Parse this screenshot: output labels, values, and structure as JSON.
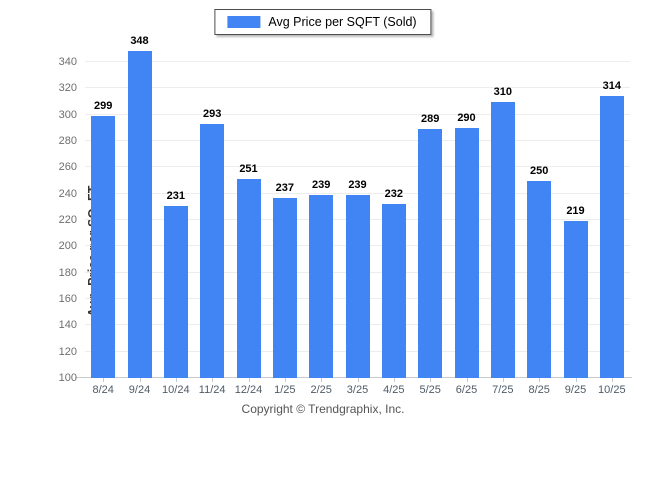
{
  "legend": {
    "label": "Avg Price per SQFT (Sold)",
    "swatch_color": "#4184F3"
  },
  "footer": {
    "copyright": "Copyright © Trendgraphix, Inc."
  },
  "colors": {
    "bar": "#4184F3",
    "gridline": "#ededed",
    "axis_line": "#cccccc",
    "y_tick_label": "#6e6e6e",
    "x_tick_label": "#4e5b66",
    "value_label": "#000000"
  },
  "chart_data": {
    "type": "bar",
    "title": "",
    "categories": [
      "8/24",
      "9/24",
      "10/24",
      "11/24",
      "12/24",
      "1/25",
      "2/25",
      "3/25",
      "4/25",
      "5/25",
      "6/25",
      "7/25",
      "8/25",
      "9/25",
      "10/25"
    ],
    "series": [
      {
        "name": "Avg Price per SQFT (Sold)",
        "color": "#4184F3",
        "values": [
          299,
          348,
          231,
          293,
          251,
          237,
          239,
          239,
          232,
          289,
          290,
          310,
          250,
          219,
          314
        ]
      }
    ],
    "xlabel": "",
    "ylabel": "Avg. Price per SQ. FT.",
    "ylim": [
      100,
      340
    ],
    "ytick_step": 20,
    "grid": "horizontal",
    "legend_position": "top-center",
    "value_labels": true
  }
}
